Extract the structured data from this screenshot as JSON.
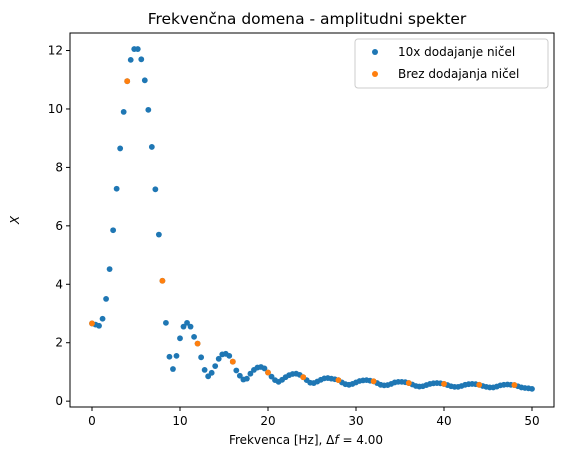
{
  "chart_data": {
    "type": "scatter",
    "title": "Frekvenčna domena - amplitudni spekter",
    "xlabel_text": "Frekvenca [Hz], ",
    "xlabel_delta": "Δ",
    "xlabel_f": "f",
    "xlabel_eq": " = 4.00",
    "ylabel": "X",
    "xlim": [
      -2.5,
      52.5
    ],
    "ylim": [
      -0.2,
      12.6
    ],
    "xticks": [
      0,
      10,
      20,
      30,
      40,
      50
    ],
    "yticks": [
      0,
      2,
      4,
      6,
      8,
      10,
      12
    ],
    "grid": false,
    "legend_position": "top-right",
    "series": [
      {
        "name": "10x dodajanje ničel",
        "color": "#1f77b4",
        "x": [
          0.0,
          0.4,
          0.8,
          1.2,
          1.6,
          2.0,
          2.4,
          2.8,
          3.2,
          3.6,
          4.0,
          4.4,
          4.8,
          5.2,
          5.6,
          6.0,
          6.4,
          6.8,
          7.2,
          7.6,
          8.0,
          8.4,
          8.8,
          9.2,
          9.6,
          10.0,
          10.4,
          10.8,
          11.2,
          11.6,
          12.0,
          12.4,
          12.8,
          13.2,
          13.6,
          14.0,
          14.4,
          14.8,
          15.2,
          15.6,
          16.0,
          16.4,
          16.8,
          17.2,
          17.6,
          18.0,
          18.4,
          18.8,
          19.2,
          19.6,
          20.0,
          20.4,
          20.8,
          21.2,
          21.6,
          22.0,
          22.4,
          22.8,
          23.2,
          23.6,
          24.0,
          24.4,
          24.8,
          25.2,
          25.6,
          26.0,
          26.4,
          26.8,
          27.2,
          27.6,
          28.0,
          28.4,
          28.8,
          29.2,
          29.6,
          30.0,
          30.4,
          30.8,
          31.2,
          31.6,
          32.0,
          32.4,
          32.8,
          33.2,
          33.6,
          34.0,
          34.4,
          34.8,
          35.2,
          35.6,
          36.0,
          36.4,
          36.8,
          37.2,
          37.6,
          38.0,
          38.4,
          38.8,
          39.2,
          39.6,
          40.0,
          40.4,
          40.8,
          41.2,
          41.6,
          42.0,
          42.4,
          42.8,
          43.2,
          43.6,
          44.0,
          44.4,
          44.8,
          45.2,
          45.6,
          46.0,
          46.4,
          46.8,
          47.2,
          47.6,
          48.0,
          48.4,
          48.8,
          49.2,
          49.6,
          50.0
        ],
        "y": [
          2.66,
          2.62,
          2.58,
          2.82,
          3.5,
          4.52,
          5.85,
          7.27,
          8.65,
          9.9,
          10.95,
          11.68,
          12.05,
          12.05,
          11.7,
          10.98,
          9.97,
          8.7,
          7.25,
          5.7,
          4.12,
          2.68,
          1.52,
          1.1,
          1.55,
          2.15,
          2.55,
          2.68,
          2.55,
          2.2,
          1.97,
          1.5,
          1.07,
          0.85,
          0.97,
          1.2,
          1.45,
          1.6,
          1.62,
          1.55,
          1.35,
          1.05,
          0.87,
          0.74,
          0.77,
          0.94,
          1.07,
          1.15,
          1.17,
          1.12,
          0.98,
          0.84,
          0.72,
          0.66,
          0.73,
          0.82,
          0.89,
          0.93,
          0.94,
          0.9,
          0.82,
          0.72,
          0.63,
          0.62,
          0.67,
          0.73,
          0.78,
          0.79,
          0.77,
          0.75,
          0.72,
          0.64,
          0.58,
          0.56,
          0.59,
          0.64,
          0.69,
          0.71,
          0.72,
          0.7,
          0.68,
          0.62,
          0.56,
          0.54,
          0.55,
          0.59,
          0.64,
          0.66,
          0.66,
          0.65,
          0.62,
          0.57,
          0.52,
          0.5,
          0.51,
          0.55,
          0.59,
          0.61,
          0.62,
          0.61,
          0.59,
          0.55,
          0.51,
          0.49,
          0.49,
          0.52,
          0.56,
          0.58,
          0.59,
          0.58,
          0.56,
          0.52,
          0.49,
          0.47,
          0.47,
          0.5,
          0.54,
          0.56,
          0.57,
          0.56,
          0.55,
          0.51,
          0.47,
          0.45,
          0.44,
          0.42
        ]
      },
      {
        "name": "Brez dodajanja ničel",
        "color": "#ff7f0e",
        "x": [
          0,
          4,
          8,
          12,
          16,
          20,
          24,
          28,
          32,
          36,
          40,
          44,
          48
        ],
        "y": [
          2.66,
          10.95,
          4.12,
          1.97,
          1.35,
          0.98,
          0.82,
          0.72,
          0.68,
          0.62,
          0.59,
          0.56,
          0.55
        ]
      }
    ]
  }
}
